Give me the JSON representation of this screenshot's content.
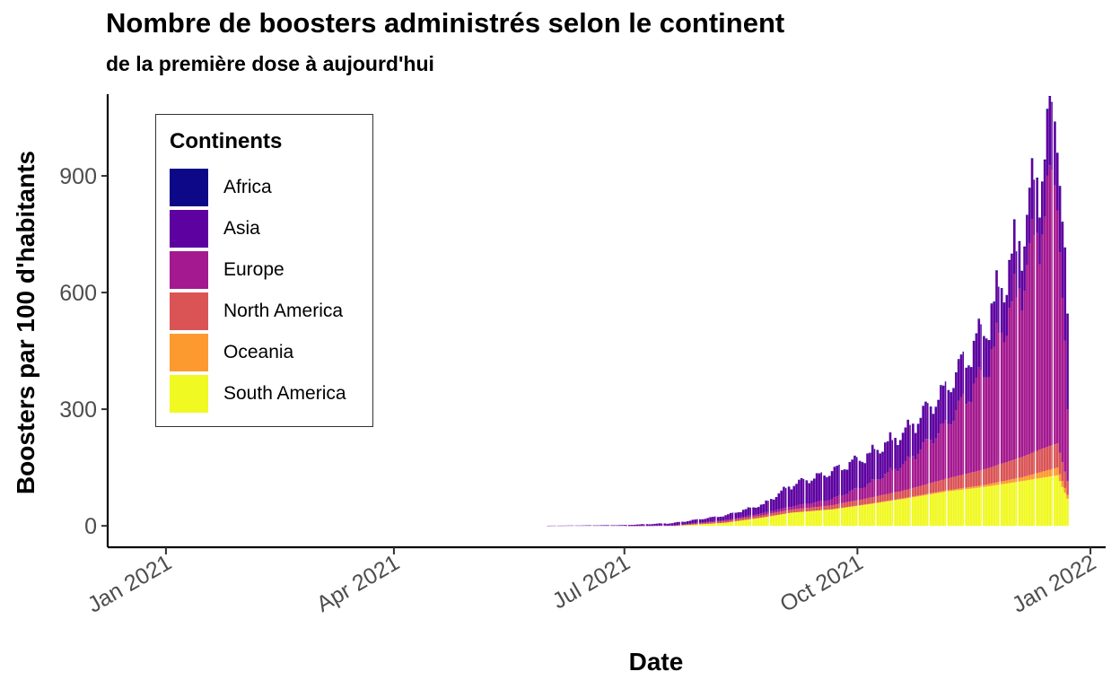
{
  "chart_data": {
    "type": "bar",
    "stacked": true,
    "title": "Nombre de boosters administrés selon le continent",
    "subtitle": "de la première dose à aujourd'hui",
    "xlabel": "Date",
    "ylabel": "Boosters par 100 d'habitants",
    "x_ticks": [
      "Jan 2021",
      "Apr 2021",
      "Jul 2021",
      "Oct 2021",
      "Jan 2022"
    ],
    "y_ticks": [
      "0",
      "300",
      "600",
      "900"
    ],
    "ylim": [
      -55,
      1110
    ],
    "xlim": [
      "2020-12-09",
      "2022-01-07"
    ],
    "grid": false,
    "legend": {
      "title": "Continents",
      "placement": "top-left"
    },
    "series": [
      {
        "name": "South America",
        "color": "#F0F921"
      },
      {
        "name": "Oceania",
        "color": "#FD9A2F"
      },
      {
        "name": "North America",
        "color": "#DA5456"
      },
      {
        "name": "Europe",
        "color": "#A4198F"
      },
      {
        "name": "Asia",
        "color": "#5D02A0"
      },
      {
        "name": "Africa",
        "color": "#0D0887"
      }
    ],
    "anchors": [
      {
        "date": "2021-06-01",
        "sa": 0,
        "oc": 0,
        "na": 0,
        "eu": 0,
        "as": 0.5,
        "af": 0
      },
      {
        "date": "2021-07-01",
        "sa": 0,
        "oc": 0,
        "na": 0,
        "eu": 0,
        "as": 2,
        "af": 0
      },
      {
        "date": "2021-07-20",
        "sa": 0,
        "oc": 0,
        "na": 0,
        "eu": 1,
        "as": 6,
        "af": 0
      },
      {
        "date": "2021-08-10",
        "sa": 8,
        "oc": 0,
        "na": 4,
        "eu": 3,
        "as": 12,
        "af": 0
      },
      {
        "date": "2021-08-25",
        "sa": 22,
        "oc": 0,
        "na": 6,
        "eu": 5,
        "as": 22,
        "af": 0.5
      },
      {
        "date": "2021-09-05",
        "sa": 34,
        "oc": 0,
        "na": 8,
        "eu": 8,
        "as": 55,
        "af": 1
      },
      {
        "date": "2021-09-20",
        "sa": 42,
        "oc": 0,
        "na": 10,
        "eu": 15,
        "as": 70,
        "af": 1
      },
      {
        "date": "2021-10-05",
        "sa": 55,
        "oc": 1,
        "na": 15,
        "eu": 35,
        "as": 75,
        "af": 1
      },
      {
        "date": "2021-10-20",
        "sa": 70,
        "oc": 2,
        "na": 20,
        "eu": 70,
        "as": 80,
        "af": 1
      },
      {
        "date": "2021-11-05",
        "sa": 88,
        "oc": 3,
        "na": 30,
        "eu": 140,
        "as": 90,
        "af": 2
      },
      {
        "date": "2021-11-20",
        "sa": 100,
        "oc": 5,
        "na": 40,
        "eu": 250,
        "as": 110,
        "af": 2
      },
      {
        "date": "2021-12-05",
        "sa": 115,
        "oc": 10,
        "na": 52,
        "eu": 450,
        "as": 120,
        "af": 3
      },
      {
        "date": "2021-12-14",
        "sa": 125,
        "oc": 16,
        "na": 60,
        "eu": 620,
        "as": 150,
        "af": 3
      },
      {
        "date": "2021-12-19",
        "sa": 130,
        "oc": 20,
        "na": 62,
        "eu": 700,
        "as": 170,
        "af": 3
      },
      {
        "date": "2021-12-23",
        "sa": 70,
        "oc": 10,
        "na": 35,
        "eu": 175,
        "as": 230,
        "af": 2
      }
    ]
  }
}
